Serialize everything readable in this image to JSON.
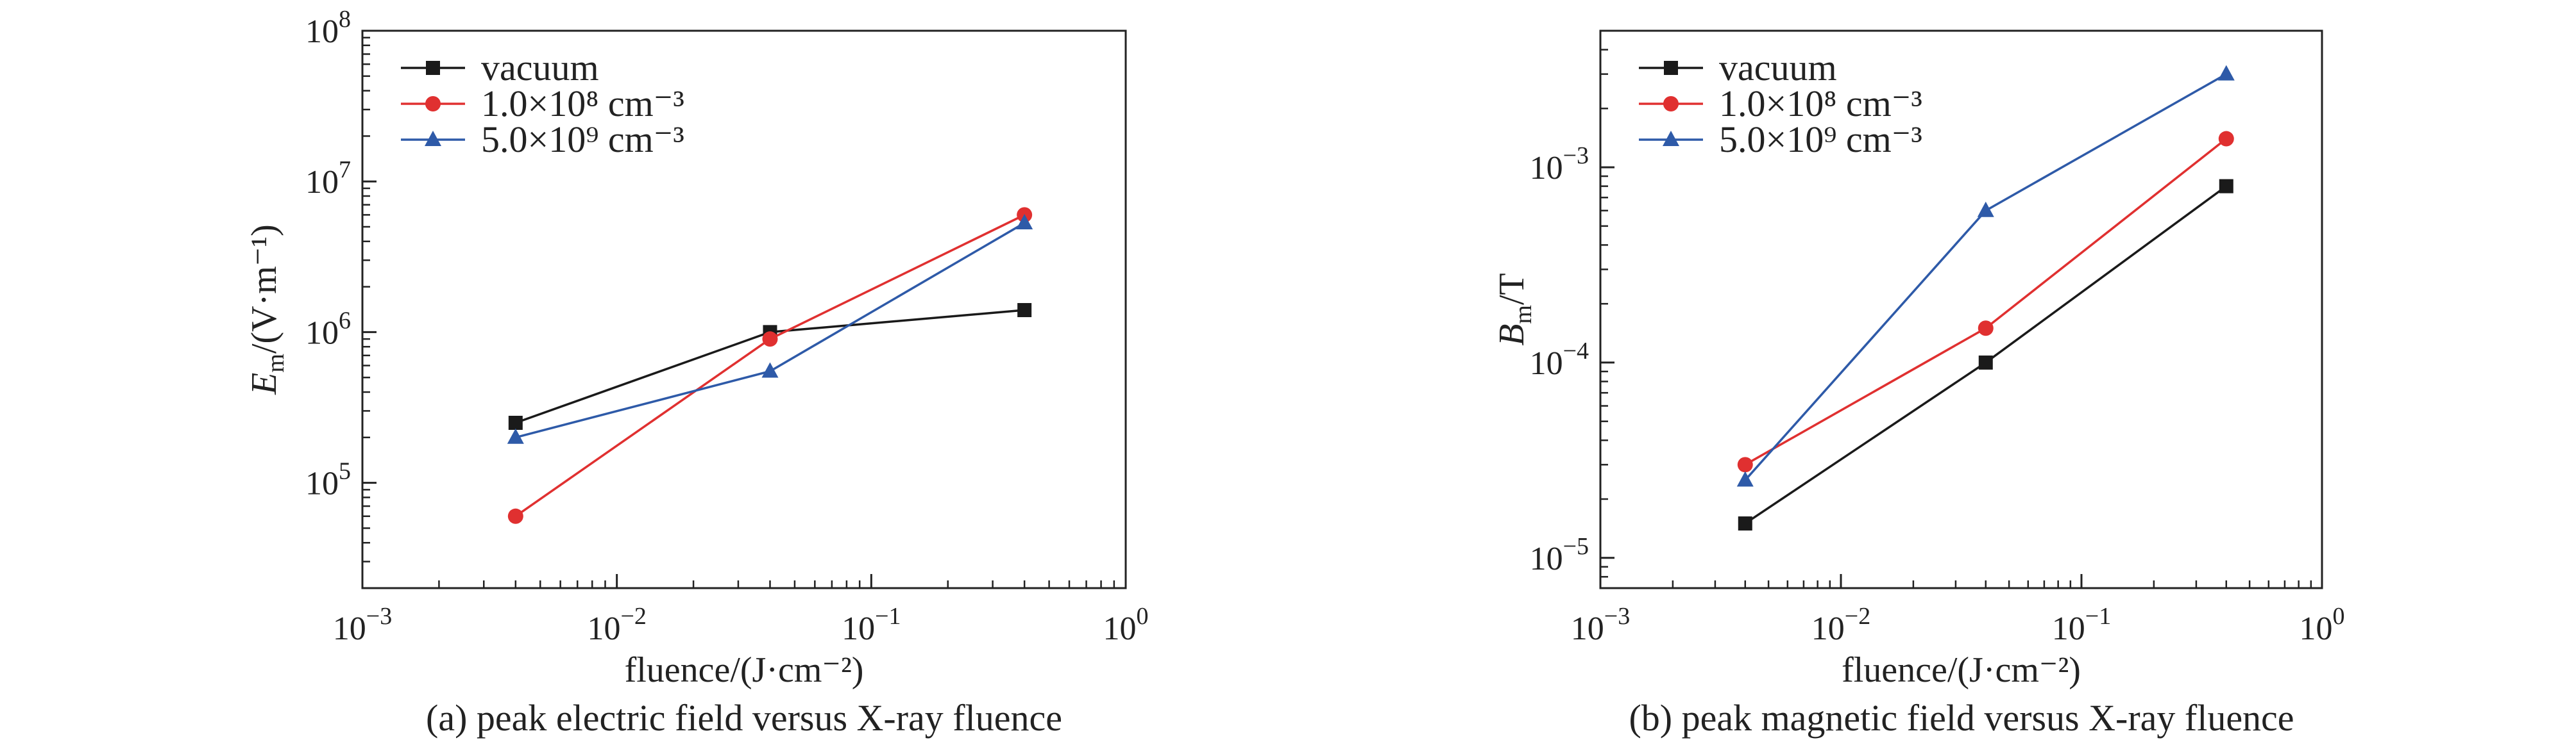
{
  "chart_data": [
    {
      "type": "line",
      "xscale": "log",
      "yscale": "log",
      "xlim": [
        0.001,
        1
      ],
      "ylim": [
        20000,
        100000000
      ],
      "xlabel": "fluence/(J·cm⁻²)",
      "ylabel_main": "E",
      "ylabel_sub": "m",
      "ylabel_rest": "/(V·m⁻¹)",
      "caption": "(a) peak electric field versus X-ray fluence",
      "x_ticks": [
        {
          "value": 0.001,
          "base": "10",
          "exp": "−3"
        },
        {
          "value": 0.01,
          "base": "10",
          "exp": "−2"
        },
        {
          "value": 0.1,
          "base": "10",
          "exp": "−1"
        },
        {
          "value": 1,
          "base": "10",
          "exp": "0"
        }
      ],
      "y_ticks": [
        {
          "value": 100000,
          "base": "10",
          "exp": "5"
        },
        {
          "value": 1000000,
          "base": "10",
          "exp": "6"
        },
        {
          "value": 10000000,
          "base": "10",
          "exp": "7"
        },
        {
          "value": 100000000,
          "base": "10",
          "exp": "8"
        }
      ],
      "x": [
        0.004,
        0.04,
        0.4
      ],
      "series": [
        {
          "name": "vacuum",
          "values": [
            250000,
            1000000,
            1400000
          ],
          "color": "#1a1a1a",
          "marker": "square"
        },
        {
          "name": "1.0×10⁸ cm⁻³",
          "values": [
            60000,
            900000,
            6000000
          ],
          "color": "#e03030",
          "marker": "circle"
        },
        {
          "name": "5.0×10⁹ cm⁻³",
          "values": [
            200000,
            550000,
            5300000
          ],
          "color": "#2e5aa8",
          "marker": "triangle"
        }
      ],
      "legend_position": "top-left",
      "grid": false
    },
    {
      "type": "line",
      "xscale": "log",
      "yscale": "log",
      "xlim": [
        0.001,
        1
      ],
      "ylim": [
        7e-06,
        0.005
      ],
      "xlabel": "fluence/(J·cm⁻²)",
      "ylabel_main": "B",
      "ylabel_sub": "m",
      "ylabel_rest": "/T",
      "caption": "(b) peak magnetic field versus X-ray fluence",
      "x_ticks": [
        {
          "value": 0.001,
          "base": "10",
          "exp": "−3"
        },
        {
          "value": 0.01,
          "base": "10",
          "exp": "−2"
        },
        {
          "value": 0.1,
          "base": "10",
          "exp": "−1"
        },
        {
          "value": 1,
          "base": "10",
          "exp": "0"
        }
      ],
      "y_ticks": [
        {
          "value": 1e-05,
          "base": "10",
          "exp": "−5"
        },
        {
          "value": 0.0001,
          "base": "10",
          "exp": "−4"
        },
        {
          "value": 0.001,
          "base": "10",
          "exp": "−3"
        }
      ],
      "x": [
        0.004,
        0.04,
        0.4
      ],
      "series": [
        {
          "name": "vacuum",
          "values": [
            1.5e-05,
            0.0001,
            0.0008
          ],
          "color": "#1a1a1a",
          "marker": "square"
        },
        {
          "name": "1.0×10⁸ cm⁻³",
          "values": [
            3e-05,
            0.00015,
            0.0014
          ],
          "color": "#e03030",
          "marker": "circle"
        },
        {
          "name": "5.0×10⁹ cm⁻³",
          "values": [
            2.5e-05,
            0.0006,
            0.003
          ],
          "color": "#2e5aa8",
          "marker": "triangle"
        }
      ],
      "legend_position": "top-left",
      "grid": false
    }
  ]
}
